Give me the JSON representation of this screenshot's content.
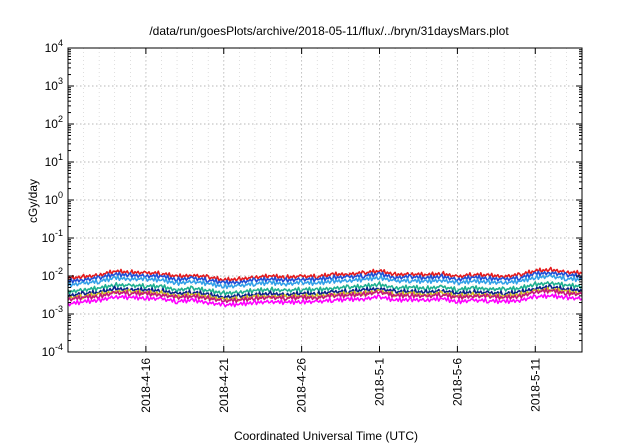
{
  "chart_data": {
    "type": "line",
    "title": "/data/run/goesPlots/archive/2018-05-11/flux/../bryn/31daysMars.plot",
    "xlabel": "Coordinated Universal Time (UTC)",
    "ylabel": "cGy/day",
    "y_scale": "log",
    "ylim": [
      0.0001,
      10000
    ],
    "xlim": [
      "2018-04-11",
      "2018-05-14"
    ],
    "grid": true,
    "legend": "none",
    "x_ticks": [
      {
        "date": "2018-04-16",
        "label": "2018-4-16"
      },
      {
        "date": "2018-04-21",
        "label": "2018-4-21"
      },
      {
        "date": "2018-04-26",
        "label": "2018-4-26"
      },
      {
        "date": "2018-05-01",
        "label": "2018-5-1"
      },
      {
        "date": "2018-05-06",
        "label": "2018-5-6"
      },
      {
        "date": "2018-05-11",
        "label": "2018-5-11"
      }
    ],
    "y_ticks": [
      {
        "value": 0.0001,
        "base": "10",
        "exp": "-4"
      },
      {
        "value": 0.001,
        "base": "10",
        "exp": "-3"
      },
      {
        "value": 0.01,
        "base": "10",
        "exp": "-2"
      },
      {
        "value": 0.1,
        "base": "10",
        "exp": "-1"
      },
      {
        "value": 1,
        "base": "10",
        "exp": "0"
      },
      {
        "value": 10,
        "base": "10",
        "exp": "1"
      },
      {
        "value": 100,
        "base": "10",
        "exp": "2"
      },
      {
        "value": 1000,
        "base": "10",
        "exp": "3"
      },
      {
        "value": 10000,
        "base": "10",
        "exp": "4"
      }
    ],
    "x": [
      "2018-04-11",
      "2018-04-12",
      "2018-04-13",
      "2018-04-14",
      "2018-04-15",
      "2018-04-16",
      "2018-04-17",
      "2018-04-18",
      "2018-04-19",
      "2018-04-20",
      "2018-04-21",
      "2018-04-22",
      "2018-04-23",
      "2018-04-24",
      "2018-04-25",
      "2018-04-26",
      "2018-04-27",
      "2018-04-28",
      "2018-04-29",
      "2018-04-30",
      "2018-05-01",
      "2018-05-02",
      "2018-05-03",
      "2018-05-04",
      "2018-05-05",
      "2018-05-06",
      "2018-05-07",
      "2018-05-08",
      "2018-05-09",
      "2018-05-10",
      "2018-05-11",
      "2018-05-12",
      "2018-05-13",
      "2018-05-14"
    ],
    "series": [
      {
        "color": "#e41a1c",
        "values": [
          0.0085,
          0.0095,
          0.0105,
          0.013,
          0.0125,
          0.012,
          0.0115,
          0.0095,
          0.0105,
          0.0092,
          0.0078,
          0.0082,
          0.0092,
          0.0098,
          0.0092,
          0.0098,
          0.0095,
          0.0108,
          0.0112,
          0.0118,
          0.0135,
          0.0108,
          0.0112,
          0.0105,
          0.0115,
          0.0095,
          0.0108,
          0.0102,
          0.0098,
          0.0105,
          0.0135,
          0.0145,
          0.0125,
          0.0118
        ]
      },
      {
        "color": "#1f4fd6",
        "values": [
          0.0072,
          0.008,
          0.0088,
          0.011,
          0.0105,
          0.01,
          0.0097,
          0.008,
          0.0088,
          0.0077,
          0.0066,
          0.0069,
          0.0077,
          0.0082,
          0.0077,
          0.0082,
          0.008,
          0.0091,
          0.0094,
          0.0099,
          0.0113,
          0.0091,
          0.0094,
          0.0088,
          0.0097,
          0.008,
          0.0091,
          0.0086,
          0.0082,
          0.0088,
          0.0113,
          0.0122,
          0.0105,
          0.0099
        ]
      },
      {
        "color": "#33a0e8",
        "values": [
          0.0058,
          0.0064,
          0.0071,
          0.0088,
          0.0084,
          0.0081,
          0.0078,
          0.0064,
          0.0071,
          0.0062,
          0.0053,
          0.0055,
          0.0062,
          0.0066,
          0.0062,
          0.0066,
          0.0064,
          0.0073,
          0.0075,
          0.008,
          0.0091,
          0.0073,
          0.0075,
          0.0071,
          0.0078,
          0.0064,
          0.0073,
          0.0069,
          0.0066,
          0.0071,
          0.0091,
          0.0098,
          0.0084,
          0.008
        ]
      },
      {
        "color": "#1fb090",
        "values": [
          0.0038,
          0.0043,
          0.0047,
          0.0058,
          0.0056,
          0.0054,
          0.0052,
          0.0043,
          0.0047,
          0.0041,
          0.0035,
          0.0037,
          0.0041,
          0.0044,
          0.0041,
          0.0044,
          0.0043,
          0.0048,
          0.005,
          0.0053,
          0.006,
          0.0048,
          0.005,
          0.0047,
          0.0052,
          0.0043,
          0.0048,
          0.0046,
          0.0044,
          0.0047,
          0.006,
          0.0065,
          0.0056,
          0.0053
        ]
      },
      {
        "color": "#0a1f8a",
        "values": [
          0.003,
          0.0034,
          0.0037,
          0.0046,
          0.0044,
          0.0042,
          0.0041,
          0.0034,
          0.0037,
          0.0032,
          0.0028,
          0.0029,
          0.0032,
          0.0034,
          0.0032,
          0.0034,
          0.0034,
          0.0038,
          0.0039,
          0.0042,
          0.0047,
          0.0038,
          0.0039,
          0.0037,
          0.0041,
          0.0034,
          0.0038,
          0.0036,
          0.0034,
          0.0037,
          0.0047,
          0.0051,
          0.0044,
          0.0042
        ]
      },
      {
        "color": "#d0c020",
        "values": [
          0.0026,
          0.0029,
          0.0032,
          0.0039,
          0.0038,
          0.0036,
          0.0035,
          0.0029,
          0.0032,
          0.0028,
          0.0024,
          0.0025,
          0.0028,
          0.0029,
          0.0028,
          0.0029,
          0.0029,
          0.0032,
          0.0034,
          0.0035,
          0.004,
          0.0032,
          0.0034,
          0.0032,
          0.0035,
          0.0029,
          0.0032,
          0.0031,
          0.0029,
          0.0032,
          0.004,
          0.0044,
          0.0038,
          0.0035
        ]
      },
      {
        "color": "#c2187a",
        "values": [
          0.0024,
          0.0027,
          0.0029,
          0.0036,
          0.0035,
          0.0034,
          0.0032,
          0.0027,
          0.0029,
          0.0026,
          0.0022,
          0.0023,
          0.0026,
          0.0027,
          0.0026,
          0.0027,
          0.0027,
          0.003,
          0.0031,
          0.0033,
          0.0038,
          0.003,
          0.0031,
          0.0029,
          0.0032,
          0.0027,
          0.003,
          0.0029,
          0.0027,
          0.0029,
          0.0038,
          0.0041,
          0.0035,
          0.0033
        ]
      },
      {
        "color": "#ff00ff",
        "values": [
          0.0018,
          0.0021,
          0.0023,
          0.0028,
          0.0027,
          0.0026,
          0.0025,
          0.0021,
          0.0023,
          0.002,
          0.0017,
          0.0018,
          0.002,
          0.0021,
          0.002,
          0.0021,
          0.0021,
          0.0023,
          0.0024,
          0.0025,
          0.0028,
          0.0023,
          0.0024,
          0.0023,
          0.0025,
          0.0021,
          0.0023,
          0.0022,
          0.0021,
          0.0023,
          0.0028,
          0.003,
          0.0027,
          0.0025
        ]
      }
    ]
  }
}
